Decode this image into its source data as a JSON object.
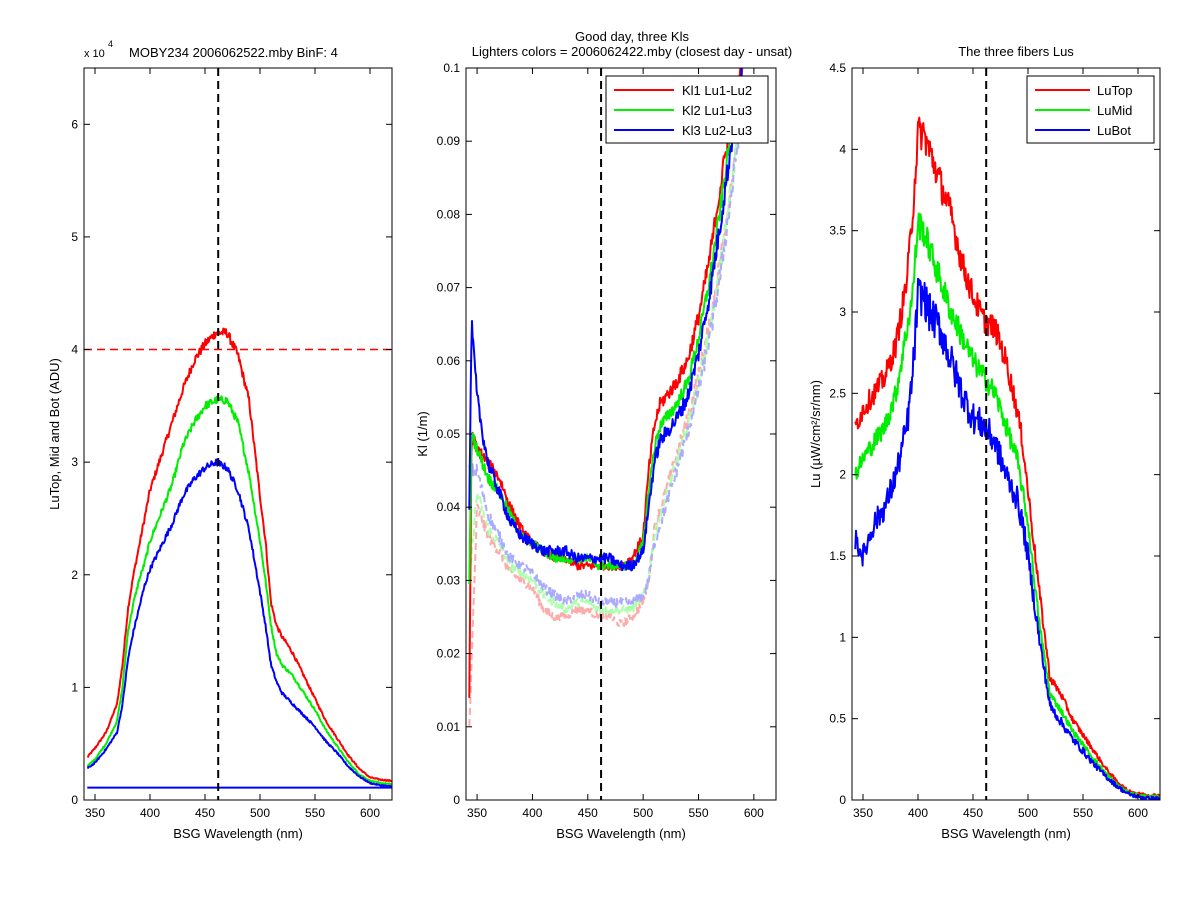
{
  "chart_data": [
    {
      "type": "line",
      "title": "MOBY234  2006062522.mby BinF: 4",
      "xlabel": "BSG Wavelength (nm)",
      "ylabel": "LuTop, Mid and Bot (ADU)",
      "multiplier_label": "x 10",
      "multiplier_exp": "4",
      "xlim": [
        340,
        620
      ],
      "ylim": [
        0,
        65000
      ],
      "xticks": [
        350,
        400,
        450,
        500,
        550,
        600
      ],
      "yticks": [
        0,
        10000,
        20000,
        30000,
        40000,
        50000,
        60000
      ],
      "ytick_labels": [
        "0",
        "1",
        "2",
        "3",
        "4",
        "5",
        "6"
      ],
      "vline_x": 462,
      "hline_y": 40000,
      "hline_color": "#ff0000",
      "series": [
        {
          "color": "#ff0000",
          "noise": 0.03,
          "x": [
            343,
            350,
            360,
            370,
            375,
            380,
            385,
            390,
            395,
            400,
            410,
            420,
            430,
            440,
            450,
            460,
            470,
            480,
            490,
            500,
            505,
            510,
            515,
            520,
            525,
            530,
            540,
            550,
            560,
            570,
            580,
            590,
            600,
            610,
            620
          ],
          "y": [
            3800,
            4600,
            6000,
            8500,
            12000,
            17000,
            20000,
            22500,
            25000,
            27500,
            30500,
            33500,
            36500,
            39000,
            40500,
            41500,
            41500,
            39500,
            35500,
            27000,
            23000,
            17500,
            15500,
            14500,
            13800,
            13000,
            11000,
            9000,
            7000,
            5500,
            4000,
            2800,
            2000,
            1800,
            1700
          ]
        },
        {
          "color": "#00ee00",
          "noise": 0.03,
          "x": [
            343,
            350,
            360,
            370,
            375,
            380,
            385,
            390,
            395,
            400,
            410,
            420,
            430,
            440,
            450,
            460,
            470,
            480,
            490,
            500,
            505,
            510,
            515,
            520,
            525,
            530,
            540,
            550,
            560,
            570,
            580,
            590,
            600,
            610,
            620
          ],
          "y": [
            3000,
            3600,
            5000,
            7000,
            10000,
            15000,
            17500,
            19500,
            21000,
            23000,
            25500,
            28000,
            31500,
            33500,
            35000,
            35500,
            35500,
            33500,
            29000,
            23000,
            19500,
            15500,
            13000,
            12000,
            11500,
            11000,
            9500,
            8000,
            6200,
            4800,
            3400,
            2300,
            1700,
            1500,
            1400
          ]
        },
        {
          "color": "#0000ff",
          "noise": 0.03,
          "x": [
            343,
            350,
            360,
            370,
            375,
            380,
            385,
            390,
            395,
            400,
            410,
            420,
            430,
            440,
            450,
            460,
            470,
            480,
            490,
            500,
            505,
            510,
            515,
            520,
            525,
            530,
            540,
            550,
            560,
            570,
            580,
            590,
            600,
            610,
            620
          ],
          "y": [
            2800,
            3300,
            4500,
            6000,
            8500,
            12500,
            15000,
            17000,
            19000,
            20500,
            22500,
            24500,
            27000,
            28500,
            29500,
            30000,
            29500,
            27500,
            24000,
            18500,
            15500,
            12000,
            10500,
            9500,
            9000,
            8500,
            7500,
            6500,
            5200,
            4200,
            3000,
            2100,
            1500,
            1300,
            1200
          ]
        },
        {
          "color": "#0000ff",
          "noise": 0,
          "x": [
            343,
            620
          ],
          "y": [
            1100,
            1100
          ]
        }
      ]
    },
    {
      "type": "line",
      "title": "Good day, three Kls",
      "subtitle": "Lighters colors = 2006062422.mby (closest day - unsat)",
      "xlabel": "BSG Wavelength (nm)",
      "ylabel": "Kl (1/m)",
      "xlim": [
        340,
        620
      ],
      "ylim": [
        0,
        0.1
      ],
      "xticks": [
        350,
        400,
        450,
        500,
        550,
        600
      ],
      "yticks": [
        0,
        0.01,
        0.02,
        0.03,
        0.04,
        0.05,
        0.06,
        0.07,
        0.08,
        0.09,
        0.1
      ],
      "ytick_labels": [
        "0",
        "0.01",
        "0.02",
        "0.03",
        "0.04",
        "0.05",
        "0.06",
        "0.07",
        "0.08",
        "0.09",
        "0.1"
      ],
      "vline_x": 462,
      "legend_position": "top-right",
      "series": [
        {
          "color": "#ffaaaa",
          "dashed": true,
          "noise": 0.06,
          "x": [
            343,
            350,
            360,
            370,
            380,
            390,
            400,
            410,
            420,
            430,
            440,
            450,
            460,
            470,
            480,
            490,
            500,
            505,
            510,
            520,
            530,
            540,
            550,
            560,
            570,
            580,
            590
          ],
          "y": [
            0.01,
            0.04,
            0.036,
            0.034,
            0.031,
            0.03,
            0.029,
            0.026,
            0.025,
            0.025,
            0.026,
            0.026,
            0.025,
            0.025,
            0.024,
            0.025,
            0.027,
            0.03,
            0.037,
            0.042,
            0.047,
            0.052,
            0.058,
            0.065,
            0.074,
            0.085,
            0.098
          ]
        },
        {
          "color": "#aaffaa",
          "dashed": true,
          "noise": 0.06,
          "x": [
            343,
            350,
            360,
            370,
            380,
            390,
            400,
            410,
            420,
            430,
            440,
            450,
            460,
            470,
            480,
            490,
            500,
            505,
            510,
            520,
            530,
            540,
            550,
            560,
            570,
            580,
            590
          ],
          "y": [
            0.03,
            0.042,
            0.037,
            0.035,
            0.032,
            0.031,
            0.03,
            0.028,
            0.027,
            0.026,
            0.027,
            0.027,
            0.026,
            0.026,
            0.026,
            0.026,
            0.028,
            0.031,
            0.036,
            0.041,
            0.046,
            0.051,
            0.057,
            0.064,
            0.073,
            0.084,
            0.097
          ]
        },
        {
          "color": "#aaaaff",
          "dashed": true,
          "noise": 0.06,
          "x": [
            343,
            350,
            360,
            370,
            380,
            390,
            400,
            410,
            420,
            430,
            440,
            450,
            460,
            470,
            480,
            490,
            500,
            505,
            510,
            520,
            530,
            540,
            550,
            560,
            570,
            580,
            590
          ],
          "y": [
            0.045,
            0.045,
            0.039,
            0.036,
            0.033,
            0.032,
            0.031,
            0.029,
            0.028,
            0.027,
            0.028,
            0.028,
            0.027,
            0.027,
            0.027,
            0.027,
            0.028,
            0.03,
            0.035,
            0.04,
            0.045,
            0.05,
            0.056,
            0.063,
            0.072,
            0.083,
            0.096
          ]
        },
        {
          "color": "#ff0000",
          "dashed": false,
          "noise": 0.05,
          "name_key": 0,
          "x": [
            343,
            345,
            350,
            355,
            360,
            370,
            380,
            390,
            400,
            410,
            420,
            430,
            440,
            450,
            460,
            470,
            480,
            490,
            500,
            505,
            510,
            515,
            520,
            530,
            540,
            550,
            560,
            570,
            580,
            590
          ],
          "y": [
            0.014,
            0.05,
            0.048,
            0.047,
            0.046,
            0.044,
            0.04,
            0.037,
            0.035,
            0.034,
            0.033,
            0.033,
            0.032,
            0.032,
            0.032,
            0.032,
            0.032,
            0.033,
            0.036,
            0.045,
            0.051,
            0.054,
            0.055,
            0.057,
            0.06,
            0.066,
            0.074,
            0.084,
            0.094,
            0.1
          ]
        },
        {
          "color": "#00ee00",
          "dashed": false,
          "noise": 0.05,
          "name_key": 1,
          "x": [
            343,
            345,
            350,
            355,
            360,
            370,
            380,
            390,
            400,
            410,
            420,
            430,
            440,
            450,
            460,
            470,
            480,
            490,
            500,
            505,
            510,
            515,
            520,
            530,
            540,
            550,
            560,
            570,
            580,
            590
          ],
          "y": [
            0.03,
            0.05,
            0.048,
            0.046,
            0.044,
            0.042,
            0.039,
            0.036,
            0.035,
            0.034,
            0.033,
            0.033,
            0.033,
            0.033,
            0.032,
            0.032,
            0.032,
            0.032,
            0.035,
            0.042,
            0.048,
            0.051,
            0.052,
            0.054,
            0.057,
            0.063,
            0.071,
            0.081,
            0.092,
            0.1
          ]
        },
        {
          "color": "#0000ff",
          "dashed": false,
          "noise": 0.06,
          "name_key": 2,
          "x": [
            343,
            345,
            350,
            355,
            360,
            370,
            380,
            390,
            400,
            410,
            420,
            430,
            440,
            450,
            460,
            470,
            480,
            490,
            500,
            505,
            510,
            515,
            520,
            530,
            540,
            550,
            560,
            570,
            580,
            590
          ],
          "y": [
            0.04,
            0.065,
            0.055,
            0.05,
            0.046,
            0.042,
            0.038,
            0.036,
            0.035,
            0.034,
            0.034,
            0.034,
            0.033,
            0.033,
            0.033,
            0.033,
            0.032,
            0.032,
            0.034,
            0.04,
            0.046,
            0.049,
            0.05,
            0.052,
            0.055,
            0.061,
            0.069,
            0.079,
            0.09,
            0.1
          ]
        }
      ],
      "legend": [
        "Kl1 Lu1-Lu2",
        "Kl2 Lu1-Lu3",
        "Kl3 Lu2-Lu3"
      ],
      "legend_colors": [
        "#ff0000",
        "#00ee00",
        "#0000ff"
      ]
    },
    {
      "type": "line",
      "title": "The three fibers Lus",
      "xlabel": "BSG Wavelength (nm)",
      "ylabel": "Lu (µW/cm²/sr/nm)",
      "xlim": [
        340,
        620
      ],
      "ylim": [
        0,
        4.5
      ],
      "xticks": [
        350,
        400,
        450,
        500,
        550,
        600
      ],
      "yticks": [
        0,
        0.5,
        1,
        1.5,
        2,
        2.5,
        3,
        3.5,
        4,
        4.5
      ],
      "ytick_labels": [
        "0",
        "0.5",
        "1",
        "1.5",
        "2",
        "2.5",
        "3",
        "3.5",
        "4",
        "4.5"
      ],
      "vline_x": 462,
      "legend_position": "top-right",
      "series": [
        {
          "color": "#ff0000",
          "noise": 0.08,
          "x": [
            343,
            350,
            360,
            370,
            380,
            390,
            395,
            400,
            405,
            410,
            420,
            430,
            440,
            450,
            460,
            470,
            480,
            490,
            495,
            500,
            505,
            510,
            520,
            530,
            540,
            550,
            560,
            570,
            580,
            590,
            600,
            610,
            620
          ],
          "y": [
            2.3,
            2.4,
            2.5,
            2.6,
            2.8,
            3.2,
            3.6,
            4.1,
            4.1,
            4.0,
            3.8,
            3.6,
            3.3,
            3.1,
            2.95,
            2.9,
            2.7,
            2.4,
            2.2,
            1.9,
            1.6,
            1.3,
            0.75,
            0.65,
            0.5,
            0.4,
            0.3,
            0.2,
            0.12,
            0.06,
            0.04,
            0.03,
            0.03
          ]
        },
        {
          "color": "#00ee00",
          "noise": 0.08,
          "x": [
            343,
            350,
            360,
            370,
            380,
            390,
            395,
            400,
            405,
            410,
            420,
            430,
            440,
            450,
            460,
            470,
            480,
            490,
            495,
            500,
            505,
            510,
            520,
            530,
            540,
            550,
            560,
            570,
            580,
            590,
            600,
            610,
            620
          ],
          "y": [
            2.0,
            2.1,
            2.2,
            2.3,
            2.5,
            2.9,
            3.1,
            3.55,
            3.5,
            3.4,
            3.2,
            3.0,
            2.85,
            2.7,
            2.6,
            2.5,
            2.3,
            2.1,
            1.9,
            1.7,
            1.4,
            1.1,
            0.65,
            0.55,
            0.43,
            0.34,
            0.25,
            0.17,
            0.1,
            0.05,
            0.03,
            0.02,
            0.02
          ]
        },
        {
          "color": "#0000ff",
          "noise": 0.12,
          "x": [
            343,
            350,
            360,
            370,
            380,
            390,
            395,
            400,
            405,
            410,
            420,
            430,
            440,
            450,
            460,
            470,
            480,
            490,
            495,
            500,
            505,
            510,
            520,
            530,
            540,
            550,
            560,
            570,
            580,
            590,
            600,
            610,
            620
          ],
          "y": [
            1.6,
            1.5,
            1.7,
            1.8,
            2.0,
            2.3,
            2.6,
            3.1,
            3.1,
            3.0,
            2.9,
            2.7,
            2.5,
            2.35,
            2.3,
            2.2,
            2.0,
            1.85,
            1.7,
            1.5,
            1.25,
            1.0,
            0.58,
            0.48,
            0.38,
            0.3,
            0.22,
            0.15,
            0.09,
            0.04,
            0.02,
            0.01,
            0.01
          ]
        }
      ],
      "legend": [
        "LuTop",
        "LuMid",
        "LuBot"
      ],
      "legend_colors": [
        "#ff0000",
        "#00ee00",
        "#0000ff"
      ]
    }
  ]
}
